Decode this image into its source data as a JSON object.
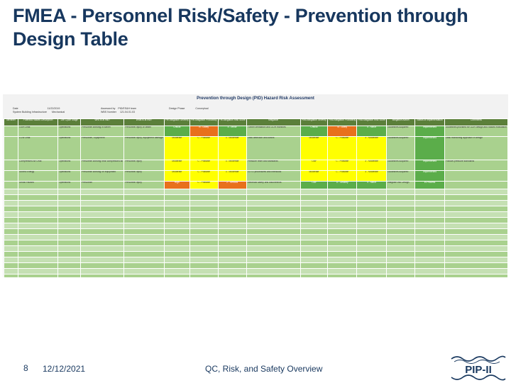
{
  "slide": {
    "title": "FMEA - Personnel Risk/Safety - Prevention through Design Table",
    "page_number": "8",
    "date": "12/12/2021",
    "footer_text": "QC, Risk, and Safety Overview",
    "logo_text": "PIP-II"
  },
  "colors": {
    "title": "#17375e",
    "header": "#5b7f3a",
    "row": "#a9d18e",
    "green": "#5bad4a",
    "orange": "#e8701c",
    "yellow": "#ffff00"
  },
  "table": {
    "title": "Prevention through Design (PtD) Hazard Risk Assessment",
    "meta": {
      "date_label": "Date",
      "date_value": "11/22/2019",
      "system_label": "System Building Infrastructure",
      "system_value": "Mechanical",
      "assessed_label": "Assessed by",
      "assessed_value": "PtD/ES&H team",
      "wbs_label": "WBS Number",
      "wbs_value": "121.04.01.03",
      "phase_label": "Design Phase",
      "phase_value": "Conceptual"
    },
    "headers": [
      "Identifier",
      "Potential Hazard Description",
      "Life Cycle Stage",
      "Who is at risk?",
      "What is at risk?",
      "Pre-Mitigation Severity",
      "Pre-Mitigation Probability",
      "Pre-Mitigation Risk Score",
      "Mitigation",
      "Post-Mitigation Severity",
      "Post-Mitigation Probability",
      "Post-Mitigation Risk Score",
      "Mitigation Action",
      "Status of Implementation",
      "Comments"
    ],
    "rows": [
      {
        "cells": [
          "",
          "ODH Leak",
          "Operations",
          "Personnel working in tunnel",
          "Personnel injury or death",
          "Critical",
          "B - Likely",
          "4 - Minor",
          "Tunnel ventilation and ODH monitors",
          "Critical",
          "B - Likely",
          "4 - Minor",
          "Guidelines Acquired",
          "Implemented",
          "Guidelines provided for ODH design and hazard evaluation"
        ]
      },
      {
        "cells": [
          "",
          "LCW Leak",
          "Operations",
          "Personnel, Equipment",
          "Personnel injury, equipment damage",
          "Moderate",
          "C - Possible",
          "3 - Moderate",
          "Leak detection and drains",
          "Moderate",
          "C - Possible",
          "3 - Moderate",
          "Guidelines Acquired",
          "Implemented",
          "Leak monitoring approach in design"
        ]
      },
      {
        "cells": [
          "",
          "Compressed Air Leak",
          "Operations",
          "Personnel working near compressed air",
          "Personnel injury",
          "Moderate",
          "C - Possible",
          "3 - Moderate",
          "Pressure relief and standards",
          "Low",
          "C - Possible",
          "3 - Moderate",
          "Guidelines Acquired",
          "Implemented",
          "Follows pressure standards"
        ]
      },
      {
        "cells": [
          "",
          "Stored Energy",
          "Operations",
          "Personnel working on equipment",
          "Personnel injury",
          "Moderate",
          "C - Possible",
          "3 - Moderate",
          "LOTO procedures and interlocks",
          "Moderate",
          "C - Possible",
          "3 - Moderate",
          "Guidelines Acquired",
          "Implemented",
          ""
        ]
      },
      {
        "cells": [
          "",
          "Shock Hazard",
          "Operations",
          "Personnel",
          "Personnel injury",
          "High",
          "C - Possible",
          "2 - Serious",
          "Electrical safety and disconnects",
          "Low",
          "D - Unlikely",
          "4 - Minor",
          "Integrate into Design",
          "In Process",
          ""
        ]
      }
    ]
  }
}
